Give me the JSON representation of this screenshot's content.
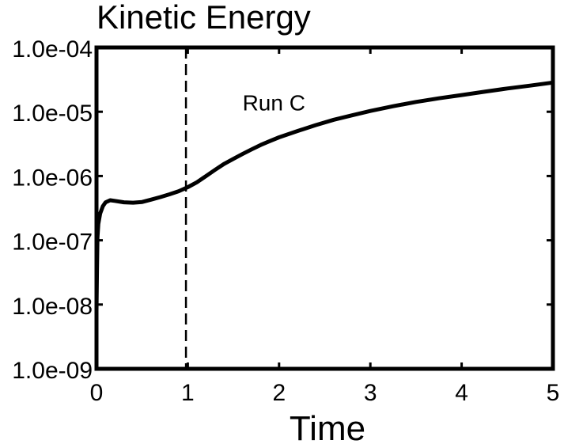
{
  "chart_data": {
    "type": "line",
    "title": "Kinetic Energy",
    "xlabel": "Time",
    "ylabel": "",
    "xscale": "linear",
    "yscale": "log",
    "xlim": [
      0,
      5
    ],
    "ylim": [
      1e-09,
      0.0001
    ],
    "xticks": [
      0,
      1,
      2,
      3,
      4,
      5
    ],
    "xtick_labels": [
      "0",
      "1",
      "2",
      "3",
      "4",
      "5"
    ],
    "yticks": [
      1e-09,
      1e-08,
      1e-07,
      1e-06,
      1e-05,
      0.0001
    ],
    "ytick_labels": [
      "1.0e-09",
      "1.0e-08",
      "1.0e-07",
      "1.0e-06",
      "1.0e-05",
      "1.0e-04"
    ],
    "grid": false,
    "vline": {
      "x": 0.98,
      "style": "dashed"
    },
    "annotation": {
      "text": "Run C",
      "x": 2.05,
      "y": 1.4e-05
    },
    "series": [
      {
        "name": "Run C",
        "x": [
          0.0,
          0.005,
          0.01,
          0.02,
          0.04,
          0.07,
          0.1,
          0.15,
          0.2,
          0.3,
          0.4,
          0.5,
          0.6,
          0.7,
          0.8,
          0.9,
          1.0,
          1.1,
          1.2,
          1.3,
          1.4,
          1.5,
          1.6,
          1.7,
          1.8,
          1.9,
          2.0,
          2.2,
          2.4,
          2.6,
          2.8,
          3.0,
          3.25,
          3.5,
          3.75,
          4.0,
          4.25,
          4.5,
          4.75,
          5.0
        ],
        "y": [
          8e-09,
          3.5e-08,
          1.1e-07,
          1.8e-07,
          2.6e-07,
          3.4e-07,
          3.9e-07,
          4.2e-07,
          4.1e-07,
          3.9e-07,
          3.85e-07,
          3.95e-07,
          4.3e-07,
          4.7e-07,
          5.2e-07,
          5.8e-07,
          6.7e-07,
          8e-07,
          1e-06,
          1.25e-06,
          1.55e-06,
          1.85e-06,
          2.2e-06,
          2.6e-06,
          3.05e-06,
          3.5e-06,
          4e-06,
          5e-06,
          6.2e-06,
          7.5e-06,
          8.8e-06,
          1.03e-05,
          1.22e-05,
          1.42e-05,
          1.62e-05,
          1.82e-05,
          2.05e-05,
          2.3e-05,
          2.55e-05,
          2.85e-05
        ]
      }
    ]
  }
}
